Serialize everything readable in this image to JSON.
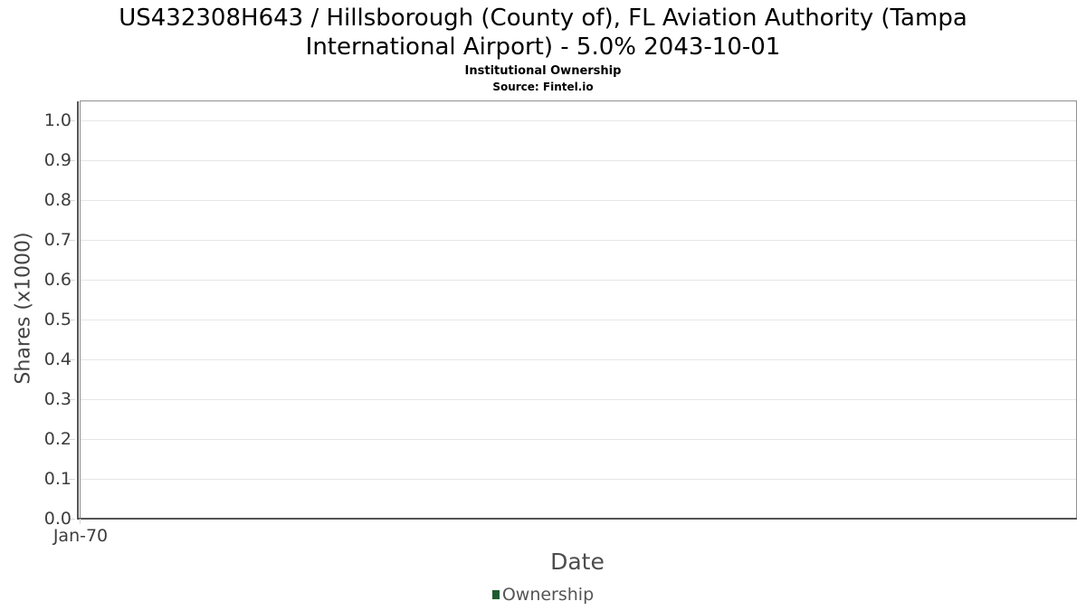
{
  "chart_data": {
    "type": "line",
    "title": "US432308H643 / Hillsborough (County of), FL Aviation Authority (Tampa International Airport) - 5.0% 2043-10-01",
    "subtitle": "Institutional Ownership",
    "source": "Source: Fintel.io",
    "xlabel": "Date",
    "ylabel": "Shares (x1000)",
    "x_ticks": [
      "Jan-70"
    ],
    "y_ticks": [
      "0.0",
      "0.1",
      "0.2",
      "0.3",
      "0.4",
      "0.5",
      "0.6",
      "0.7",
      "0.8",
      "0.9",
      "1.0"
    ],
    "ylim": [
      0.0,
      1.05
    ],
    "grid": true,
    "legend": {
      "position": "bottom",
      "entries": [
        {
          "label": "Ownership",
          "color": "#1e5b31"
        }
      ]
    },
    "series": [
      {
        "name": "Ownership",
        "x": [],
        "values": []
      }
    ],
    "colors": {
      "axis_line": "#555555",
      "plot_border": "#8f8f8f",
      "gridline": "#e6e6e6",
      "tick_label": "#3d3d3d",
      "axis_title": "#4d4d4d",
      "legend_text": "#555555"
    }
  }
}
